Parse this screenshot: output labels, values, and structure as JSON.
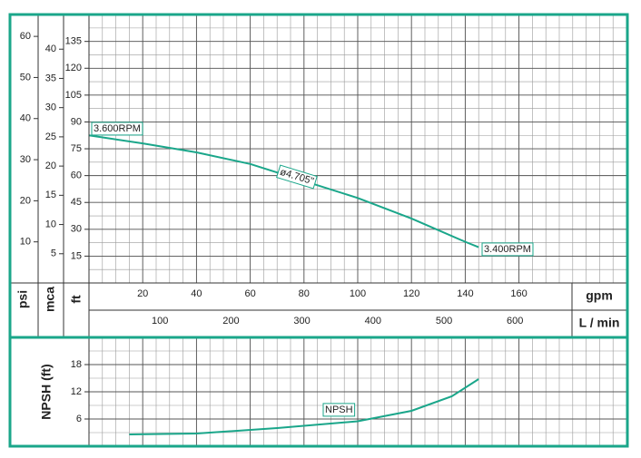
{
  "chart_data": [
    {
      "type": "line",
      "ylabel": "ft",
      "ylim": [
        0,
        147
      ],
      "yticks": [
        15,
        30,
        45,
        60,
        75,
        90,
        105,
        120,
        135
      ],
      "secondary_axes": [
        {
          "label": "psi",
          "ylim": [
            0,
            64
          ],
          "yticks": [
            10,
            20,
            30,
            40,
            50,
            60
          ]
        },
        {
          "label": "mca",
          "ylim": [
            0,
            45
          ],
          "yticks": [
            5,
            10,
            15,
            20,
            25,
            30,
            35,
            40
          ]
        }
      ],
      "xlabel": "gpm",
      "xlim": [
        0,
        200
      ],
      "xticks": [
        20,
        40,
        60,
        80,
        100,
        120,
        140,
        160
      ],
      "x2label": "L / min",
      "x2lim": [
        0,
        757
      ],
      "x2ticks": [
        100,
        200,
        300,
        400,
        500,
        600
      ],
      "x": [
        0,
        20,
        40,
        60,
        80,
        100,
        120,
        140,
        145
      ],
      "series": [
        {
          "color": "#1aa68a",
          "values": [
            82.5,
            78,
            73,
            66.5,
            57,
            47.5,
            36,
            23,
            20
          ]
        }
      ],
      "annotations": [
        "3.600RPM",
        "ø4.705\"",
        "3.400RPM"
      ],
      "grid": true
    },
    {
      "type": "line",
      "ylabel": "NPSH (ft)",
      "ylim": [
        0,
        24
      ],
      "yticks": [
        6,
        12,
        18
      ],
      "xlim": [
        0,
        200
      ],
      "x": [
        15,
        40,
        70,
        100,
        120,
        135,
        145
      ],
      "series": [
        {
          "color": "#1aa68a",
          "values": [
            2.6,
            2.8,
            4,
            5.5,
            7.8,
            11,
            14.8
          ]
        }
      ],
      "annotations": [
        "NPSH"
      ],
      "grid": true
    }
  ]
}
